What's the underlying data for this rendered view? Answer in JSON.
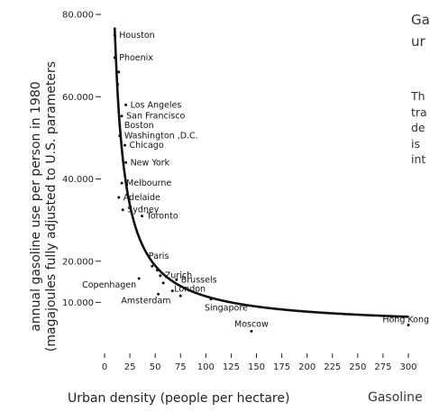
{
  "chart_data": {
    "type": "scatter",
    "xlabel": "Urban density (people per hectare)",
    "ylabel_line1": "annual gasoline use per person in 1980",
    "ylabel_line2": "(magajoules fully adjusted to U.S. parameters",
    "xlim": [
      0,
      300
    ],
    "ylim": [
      0,
      80000
    ],
    "x_ticks": [
      "0",
      "25",
      "50",
      "75",
      "100",
      "125",
      "150",
      "175",
      "200",
      "225",
      "250",
      "275",
      "300"
    ],
    "y_ticks": [
      {
        "value": 10000,
        "label": "10.000"
      },
      {
        "value": 20000,
        "label": "20.000"
      },
      {
        "value": 40000,
        "label": "40.000"
      },
      {
        "value": 60000,
        "label": "60.000"
      },
      {
        "value": 80000,
        "label": "80.000"
      }
    ],
    "points": [
      {
        "x": 10,
        "y": 75000,
        "label": "Houston"
      },
      {
        "x": 10,
        "y": 69500,
        "label": "Phoenix"
      },
      {
        "x": 14,
        "y": 66000,
        "label": ""
      },
      {
        "x": 13,
        "y": 63000,
        "label": ""
      },
      {
        "x": 21,
        "y": 58000,
        "label": "Los Angeles"
      },
      {
        "x": 17,
        "y": 55300,
        "label": "San Francisco"
      },
      {
        "x": 15,
        "y": 53000,
        "label": "Boston"
      },
      {
        "x": 15,
        "y": 50500,
        "label": "Washington ,D.C."
      },
      {
        "x": 20,
        "y": 48200,
        "label": "Chicago"
      },
      {
        "x": 21,
        "y": 44000,
        "label": "New York"
      },
      {
        "x": 17,
        "y": 39000,
        "label": "Melbourne"
      },
      {
        "x": 14,
        "y": 35500,
        "label": "Adelaide"
      },
      {
        "x": 18,
        "y": 32500,
        "label": "Sydney"
      },
      {
        "x": 37,
        "y": 31000,
        "label": "Toronto"
      },
      {
        "x": 47,
        "y": 18800,
        "label": "Paris"
      },
      {
        "x": 55,
        "y": 16500,
        "label": "Zurich"
      },
      {
        "x": 52,
        "y": 17800,
        "label": ""
      },
      {
        "x": 71,
        "y": 15500,
        "label": "Brussels"
      },
      {
        "x": 34,
        "y": 15800,
        "label": "Copenhagen"
      },
      {
        "x": 58,
        "y": 14700,
        "label": ""
      },
      {
        "x": 67,
        "y": 12800,
        "label": "London"
      },
      {
        "x": 53,
        "y": 12000,
        "label": "Amsterdam"
      },
      {
        "x": 75,
        "y": 11600,
        "label": ""
      },
      {
        "x": 105,
        "y": 10800,
        "label": "Singapore"
      },
      {
        "x": 145,
        "y": 3000,
        "label": "Moscow"
      },
      {
        "x": 300,
        "y": 4500,
        "label": "Hong Kong"
      }
    ],
    "trend": "hyperbolic fit"
  },
  "side_panel": {
    "title_line1": "Ga",
    "title_line2": "ur",
    "body_lines": [
      "Th",
      "tra",
      "de",
      "is",
      "int"
    ],
    "caption": "Gasoline"
  }
}
